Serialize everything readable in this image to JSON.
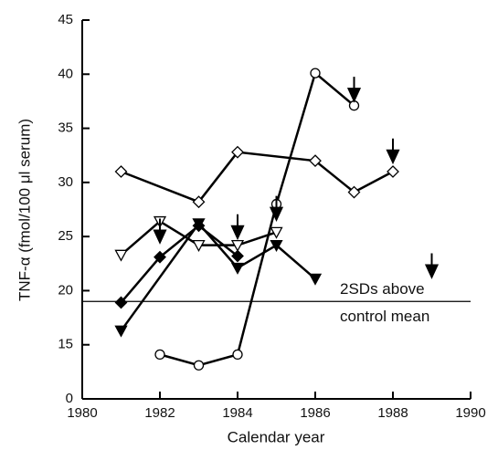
{
  "chart_data": {
    "type": "line",
    "xlabel": "Calendar year",
    "ylabel": "TNF-α (fmol/100 μl serum)",
    "xlim": [
      1980,
      1990
    ],
    "xticks": [
      1980,
      1982,
      1984,
      1986,
      1988,
      1990
    ],
    "ylim": [
      0,
      45
    ],
    "yticks": [
      0,
      15,
      20,
      25,
      30,
      35,
      40,
      45
    ],
    "axis_break": [
      0,
      10
    ],
    "threshold": 19,
    "annotation": [
      "2SDs above",
      "control mean"
    ],
    "series": [
      {
        "marker": "diamond-open",
        "color": "#000",
        "x": [
          1981,
          1983,
          1984,
          1986,
          1987,
          1988
        ],
        "values": [
          31,
          28.2,
          32.8,
          32,
          29.1,
          31
        ]
      },
      {
        "marker": "circle-open",
        "color": "#000",
        "x": [
          1982,
          1983,
          1984,
          1985,
          1986,
          1987
        ],
        "values": [
          14.1,
          13.1,
          14.1,
          28,
          40.1,
          37.1
        ]
      },
      {
        "marker": "triangle-open",
        "color": "#000",
        "x": [
          1981,
          1982,
          1983,
          1984,
          1985
        ],
        "values": [
          23.3,
          26.4,
          24.2,
          24.2,
          25.4
        ]
      },
      {
        "marker": "triangle",
        "color": "#000",
        "x": [
          1981,
          1983,
          1984,
          1985,
          1986
        ],
        "values": [
          16.3,
          26.2,
          22.1,
          24.2,
          21.1
        ]
      },
      {
        "marker": "diamond",
        "color": "#000",
        "x": [
          1981,
          1982,
          1983,
          1984
        ],
        "values": [
          18.9,
          23.1,
          26,
          23.2
        ]
      }
    ],
    "arrows": {
      "x": [
        1982,
        1984,
        1985,
        1987,
        1988,
        1989
      ],
      "y": [
        24.8,
        25.2,
        26.9,
        37.9,
        32.2,
        21.6
      ]
    }
  }
}
